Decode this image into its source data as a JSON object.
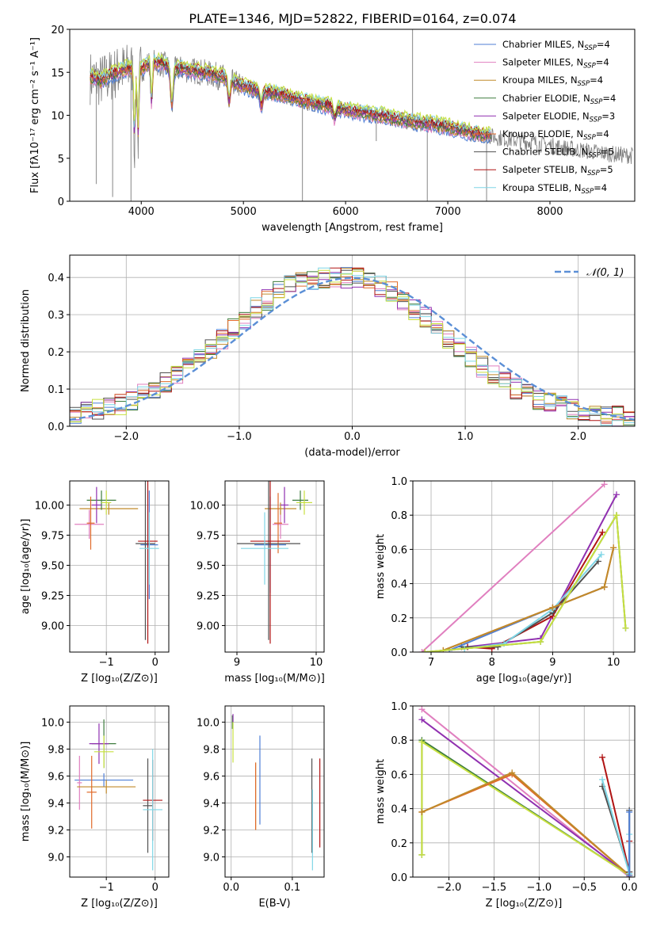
{
  "figure": {
    "title": "PLATE=1346, MJD=52822, FIBERID=0164, z=0.074"
  },
  "colors": {
    "Chabrier MILES": "#4f7fd6",
    "Salpeter MILES": "#e07fbf",
    "Kroupa MILES": "#c08a2a",
    "Chabrier ELODIE": "#3e7d3e",
    "Salpeter ELODIE": "#9030b0",
    "Kroupa ELODIE": "#e06a2a",
    "Chabrier STELIB": "#505050",
    "Salpeter STELIB": "#b01414",
    "Kroupa STELIB": "#7fd6e6",
    "extra": "#c8e040",
    "data": "#7f7f7f",
    "normal": "#5b8fd6"
  },
  "chart_data": [
    {
      "id": "spectrum",
      "type": "line",
      "xlabel": "wavelength [Angstrom, rest frame]",
      "ylabel": "Flux [fλ10⁻¹⁷ erg cm⁻² s⁻¹ A⁻¹]",
      "xlim": [
        3300,
        8830
      ],
      "ylim": [
        0,
        20
      ],
      "xticks": [
        4000,
        5000,
        6000,
        7000,
        8000
      ],
      "yticks": [
        0,
        5,
        10,
        15,
        20
      ],
      "grid": false,
      "legend": "upper right",
      "legend_entries": [
        {
          "name": "Chabrier MILES",
          "nssp": "4"
        },
        {
          "name": "Salpeter MILES",
          "nssp": "4"
        },
        {
          "name": "Kroupa MILES",
          "nssp": "4"
        },
        {
          "name": "Chabrier ELODIE",
          "nssp": "4"
        },
        {
          "name": "Salpeter ELODIE",
          "nssp": "3"
        },
        {
          "name": "Kroupa ELODIE",
          "nssp": "4"
        },
        {
          "name": "Chabrier STELIB",
          "nssp": "5"
        },
        {
          "name": "Salpeter STELIB",
          "nssp": "5"
        },
        {
          "name": "Kroupa STELIB",
          "nssp": "4"
        }
      ],
      "continuum": [
        [
          3500,
          14.4
        ],
        [
          3600,
          14.0
        ],
        [
          3700,
          14.6
        ],
        [
          3800,
          15.2
        ],
        [
          3900,
          15.5
        ],
        [
          4000,
          15.4
        ],
        [
          4100,
          16.2
        ],
        [
          4200,
          16.0
        ],
        [
          4300,
          15.3
        ],
        [
          4400,
          15.4
        ],
        [
          4600,
          15.0
        ],
        [
          4800,
          14.4
        ],
        [
          5000,
          13.3
        ],
        [
          5200,
          12.7
        ],
        [
          5400,
          12.3
        ],
        [
          5600,
          11.6
        ],
        [
          5800,
          11.1
        ],
        [
          6000,
          10.6
        ],
        [
          6200,
          10.2
        ],
        [
          6400,
          9.8
        ],
        [
          6600,
          9.3
        ],
        [
          6800,
          9.0
        ],
        [
          7000,
          8.6
        ],
        [
          7200,
          8.0
        ],
        [
          7400,
          7.6
        ],
        [
          7600,
          7.2
        ],
        [
          7800,
          6.9
        ],
        [
          8000,
          6.5
        ],
        [
          8200,
          6.1
        ],
        [
          8400,
          5.8
        ],
        [
          8600,
          5.5
        ],
        [
          8800,
          5.3
        ]
      ],
      "absorption_lines": [
        [
          3934,
          6.5
        ],
        [
          3969,
          7.2
        ],
        [
          4101,
          11.0
        ],
        [
          4300,
          10.5
        ],
        [
          4861,
          11.3
        ],
        [
          5175,
          10.8
        ],
        [
          5893,
          9.5
        ]
      ],
      "data_spikes": [
        [
          3560,
          2.0
        ],
        [
          3720,
          0.5
        ],
        [
          3900,
          0
        ],
        [
          5577,
          0
        ],
        [
          6300,
          7.0
        ],
        [
          6800,
          0
        ],
        [
          7380,
          0
        ],
        [
          6655,
          20
        ]
      ]
    },
    {
      "id": "residuals",
      "type": "line",
      "xlabel": "(data-model)/error",
      "ylabel": "Normed distribution",
      "xlim": [
        -2.5,
        2.5
      ],
      "ylim": [
        0,
        0.46
      ],
      "xticks": [
        -2,
        -1,
        0,
        1,
        2
      ],
      "yticks": [
        0.0,
        0.1,
        0.2,
        0.3,
        0.4
      ],
      "grid": true,
      "legend": "upper right",
      "legend_entries": [
        {
          "name": "𝒩(0, 1)"
        }
      ],
      "bin_centers": [
        -2.45,
        -2.35,
        -2.25,
        -2.15,
        -2.05,
        -1.95,
        -1.85,
        -1.75,
        -1.65,
        -1.55,
        -1.45,
        -1.35,
        -1.25,
        -1.15,
        -1.05,
        -0.95,
        -0.85,
        -0.75,
        -0.65,
        -0.55,
        -0.45,
        -0.35,
        -0.25,
        -0.15,
        -0.05,
        0.05,
        0.15,
        0.25,
        0.35,
        0.45,
        0.55,
        0.65,
        0.75,
        0.85,
        0.95,
        1.05,
        1.15,
        1.25,
        1.35,
        1.45,
        1.55,
        1.65,
        1.75,
        1.85,
        1.95,
        2.05,
        2.15,
        2.25,
        2.35,
        2.45
      ],
      "hist_base": [
        0.035,
        0.038,
        0.045,
        0.052,
        0.06,
        0.07,
        0.084,
        0.1,
        0.118,
        0.138,
        0.16,
        0.185,
        0.21,
        0.236,
        0.263,
        0.29,
        0.316,
        0.34,
        0.36,
        0.376,
        0.388,
        0.396,
        0.4,
        0.402,
        0.4,
        0.396,
        0.388,
        0.376,
        0.36,
        0.34,
        0.316,
        0.29,
        0.263,
        0.236,
        0.21,
        0.185,
        0.16,
        0.138,
        0.118,
        0.1,
        0.084,
        0.07,
        0.06,
        0.052,
        0.045,
        0.038,
        0.035,
        0.03,
        0.026,
        0.022
      ]
    },
    {
      "id": "age_vs_Z",
      "type": "scatter",
      "xlabel": "Z [log₁₀(Z/Z⊙)]",
      "ylabel": "age  [log₁₀(age/yr)]",
      "xlim": [
        -1.75,
        0.28
      ],
      "ylim": [
        8.78,
        10.2
      ],
      "xticks": [
        -1,
        0
      ],
      "yticks": [
        9.0,
        9.25,
        9.5,
        9.75,
        10.0
      ],
      "grid": true,
      "points": [
        {
          "c": "Chabrier MILES",
          "x": -0.12,
          "y": 9.67,
          "xerr": 0.18,
          "yerr": 0.45
        },
        {
          "c": "Salpeter MILES",
          "x": -1.35,
          "y": 9.84,
          "xerr": 0.3,
          "yerr": 0.12
        },
        {
          "c": "Kroupa MILES",
          "x": -0.95,
          "y": 9.97,
          "xerr": 0.6,
          "yerr": 0.05
        },
        {
          "c": "Chabrier ELODIE",
          "x": -1.1,
          "y": 10.04,
          "xerr": 0.3,
          "yerr": 0.08
        },
        {
          "c": "Salpeter ELODIE",
          "x": -1.2,
          "y": 10.0,
          "xerr": 0.1,
          "yerr": 0.15
        },
        {
          "c": "Kroupa ELODIE",
          "x": -1.32,
          "y": 9.85,
          "xerr": 0.08,
          "yerr": 0.22
        },
        {
          "c": "Chabrier STELIB",
          "x": -0.2,
          "y": 9.68,
          "xerr": 0.2,
          "yerr": 0.8
        },
        {
          "c": "Salpeter STELIB",
          "x": -0.15,
          "y": 9.7,
          "xerr": 0.2,
          "yerr": 0.85
        },
        {
          "c": "Kroupa STELIB",
          "x": -0.12,
          "y": 9.64,
          "xerr": 0.2,
          "yerr": 0.3
        },
        {
          "c": "extra",
          "x": -1.0,
          "y": 10.02,
          "xerr": 0.1,
          "yerr": 0.1
        }
      ]
    },
    {
      "id": "age_vs_mass",
      "type": "scatter",
      "xlabel": "mass [log₁₀(M/M⊙)]",
      "ylabel": "",
      "xlim": [
        8.85,
        10.1
      ],
      "ylim": [
        8.78,
        10.2
      ],
      "xticks": [
        9,
        10
      ],
      "yticks": [
        9.0,
        9.25,
        9.5,
        9.75,
        10.0
      ],
      "grid": true,
      "points": [
        {
          "c": "Chabrier MILES",
          "x": 9.42,
          "y": 9.67,
          "xerr": 0.2,
          "yerr": 0.4
        },
        {
          "c": "Salpeter MILES",
          "x": 9.55,
          "y": 9.84,
          "xerr": 0.1,
          "yerr": 0.12
        },
        {
          "c": "Kroupa MILES",
          "x": 9.55,
          "y": 9.97,
          "xerr": 0.2,
          "yerr": 0.05
        },
        {
          "c": "Chabrier ELODIE",
          "x": 9.8,
          "y": 10.04,
          "xerr": 0.1,
          "yerr": 0.08
        },
        {
          "c": "Salpeter ELODIE",
          "x": 9.6,
          "y": 10.0,
          "xerr": 0.05,
          "yerr": 0.15
        },
        {
          "c": "Kroupa ELODIE",
          "x": 9.52,
          "y": 9.85,
          "xerr": 0.05,
          "yerr": 0.25
        },
        {
          "c": "Chabrier STELIB",
          "x": 9.4,
          "y": 9.68,
          "xerr": 0.4,
          "yerr": 0.8
        },
        {
          "c": "Salpeter STELIB",
          "x": 9.42,
          "y": 9.7,
          "xerr": 0.25,
          "yerr": 0.85
        },
        {
          "c": "Kroupa STELIB",
          "x": 9.35,
          "y": 9.64,
          "xerr": 0.3,
          "yerr": 0.3
        },
        {
          "c": "extra",
          "x": 9.85,
          "y": 10.02,
          "xerr": 0.1,
          "yerr": 0.1
        }
      ]
    },
    {
      "id": "mass_weight_vs_age",
      "type": "line",
      "xlabel": "age  [log₁₀(age/yr)]",
      "ylabel": "mass weight",
      "xlim": [
        6.7,
        10.35
      ],
      "ylim": [
        0,
        1
      ],
      "xticks": [
        7,
        8,
        9,
        10
      ],
      "yticks": [
        0.0,
        0.2,
        0.4,
        0.6,
        0.8,
        1.0
      ],
      "grid": true,
      "series": [
        {
          "c": "Salpeter MILES",
          "x": [
            6.85,
            9.85
          ],
          "y": [
            0.0,
            0.98
          ]
        },
        {
          "c": "Salpeter ELODIE",
          "x": [
            7.6,
            8.8,
            10.05
          ],
          "y": [
            0.03,
            0.08,
            0.92
          ]
        },
        {
          "c": "Salpeter STELIB",
          "x": [
            7.6,
            8.0,
            9.0,
            9.82
          ],
          "y": [
            0.03,
            0.02,
            0.21,
            0.7
          ]
        },
        {
          "c": "Chabrier STELIB",
          "x": [
            7.5,
            8.1,
            9.0,
            9.75
          ],
          "y": [
            0.03,
            0.03,
            0.23,
            0.53
          ]
        },
        {
          "c": "Kroupa STELIB",
          "x": [
            7.55,
            8.2,
            9.0,
            9.8
          ],
          "y": [
            0.02,
            0.05,
            0.25,
            0.57
          ]
        },
        {
          "c": "Chabrier MILES",
          "x": [
            7.3,
            9.0,
            9.85
          ],
          "y": [
            0.01,
            0.26,
            0.38
          ]
        },
        {
          "c": "Kroupa ELODIE",
          "x": [
            7.2,
            9.0,
            9.85,
            10.0
          ],
          "y": [
            0.01,
            0.26,
            0.38,
            0.61
          ]
        },
        {
          "c": "Kroupa MILES",
          "x": [
            7.2,
            9.0,
            9.85,
            10.0
          ],
          "y": [
            0.01,
            0.26,
            0.38,
            0.61
          ]
        },
        {
          "c": "Chabrier ELODIE",
          "x": [
            6.9,
            8.8,
            10.05,
            10.2
          ],
          "y": [
            0.0,
            0.06,
            0.8,
            0.14
          ]
        },
        {
          "c": "extra",
          "x": [
            6.9,
            8.8,
            10.05,
            10.2
          ],
          "y": [
            0.0,
            0.06,
            0.8,
            0.14
          ]
        }
      ]
    },
    {
      "id": "mass_vs_Z",
      "type": "scatter",
      "xlabel": "Z [log₁₀(Z/Z⊙)]",
      "ylabel": "mass [log₁₀(M/M⊙)]",
      "xlim": [
        -1.75,
        0.28
      ],
      "ylim": [
        8.85,
        10.12
      ],
      "xticks": [
        -1,
        0
      ],
      "yticks": [
        9.0,
        9.2,
        9.4,
        9.6,
        9.8,
        10.0
      ],
      "grid": true,
      "points": [
        {
          "c": "Chabrier MILES",
          "x": -1.05,
          "y": 9.57,
          "xerr": 0.6,
          "yerr": 0.05
        },
        {
          "c": "Salpeter MILES",
          "x": -1.55,
          "y": 9.55,
          "xerr": 0.05,
          "yerr": 0.2
        },
        {
          "c": "Kroupa MILES",
          "x": -1.0,
          "y": 9.52,
          "xerr": 0.6,
          "yerr": 0.05
        },
        {
          "c": "Chabrier ELODIE",
          "x": -1.05,
          "y": 9.84,
          "xerr": 0.25,
          "yerr": 0.18
        },
        {
          "c": "Salpeter ELODIE",
          "x": -1.15,
          "y": 9.84,
          "xerr": 0.2,
          "yerr": 0.15
        },
        {
          "c": "Kroupa ELODIE",
          "x": -1.3,
          "y": 9.48,
          "xerr": 0.1,
          "yerr": 0.27
        },
        {
          "c": "Chabrier STELIB",
          "x": -0.15,
          "y": 9.38,
          "xerr": 0.1,
          "yerr": 0.35
        },
        {
          "c": "Salpeter STELIB",
          "x": -0.05,
          "y": 9.42,
          "xerr": 0.2,
          "yerr": 0.3
        },
        {
          "c": "Kroupa STELIB",
          "x": -0.05,
          "y": 9.35,
          "xerr": 0.2,
          "yerr": 0.45
        },
        {
          "c": "extra",
          "x": -1.05,
          "y": 9.78,
          "xerr": 0.2,
          "yerr": 0.12
        }
      ]
    },
    {
      "id": "mass_vs_ebv",
      "type": "scatter",
      "xlabel": "E(B-V)",
      "ylabel": "",
      "xlim": [
        -0.01,
        0.152
      ],
      "ylim": [
        8.85,
        10.12
      ],
      "xticks": [
        0.0,
        0.1
      ],
      "yticks": [
        9.0,
        9.2,
        9.4,
        9.6,
        9.8,
        10.0
      ],
      "grid": true,
      "points": [
        {
          "c": "Chabrier MILES",
          "x": 0.047,
          "y": 9.57,
          "yerr": 0.33
        },
        {
          "c": "Kroupa MILES",
          "x": 0.04,
          "y": 9.45,
          "yerr": 0.25
        },
        {
          "c": "Kroupa ELODIE",
          "x": 0.04,
          "y": 9.45,
          "yerr": 0.25
        },
        {
          "c": "Chabrier STELIB",
          "x": 0.132,
          "y": 9.38,
          "yerr": 0.35
        },
        {
          "c": "Salpeter STELIB",
          "x": 0.145,
          "y": 9.4,
          "yerr": 0.33
        },
        {
          "c": "Kroupa STELIB",
          "x": 0.133,
          "y": 9.2,
          "yerr": 0.3
        },
        {
          "c": "Chabrier ELODIE",
          "x": 0.002,
          "y": 10.0,
          "yerr": 0.05
        },
        {
          "c": "Salpeter ELODIE",
          "x": 0.003,
          "y": 10.03,
          "yerr": 0.03
        },
        {
          "c": "extra",
          "x": 0.003,
          "y": 9.85,
          "yerr": 0.15
        }
      ]
    },
    {
      "id": "mass_weight_vs_Z",
      "type": "line",
      "xlabel": "Z [log₁₀(Z/Z⊙)]",
      "ylabel": "mass weight",
      "xlim": [
        -2.4,
        0.06
      ],
      "ylim": [
        0,
        1
      ],
      "xticks": [
        -2.0,
        -1.5,
        -1.0,
        -0.5,
        0.0
      ],
      "yticks": [
        0.0,
        0.2,
        0.4,
        0.6,
        0.8,
        1.0
      ],
      "grid": true,
      "series": [
        {
          "c": "Salpeter MILES",
          "x": [
            -2.3,
            0.0
          ],
          "y": [
            0.98,
            0.0
          ]
        },
        {
          "c": "Salpeter ELODIE",
          "x": [
            -2.3,
            0.0
          ],
          "y": [
            0.92,
            0.01
          ]
        },
        {
          "c": "Chabrier ELODIE",
          "x": [
            -2.3,
            -2.3,
            0.0
          ],
          "y": [
            0.13,
            0.8,
            0.01
          ]
        },
        {
          "c": "extra",
          "x": [
            -2.3,
            -2.3,
            0.0
          ],
          "y": [
            0.13,
            0.79,
            0.01
          ]
        },
        {
          "c": "Kroupa ELODIE",
          "x": [
            -2.3,
            -1.3,
            0.0
          ],
          "y": [
            0.38,
            0.6,
            0.01
          ]
        },
        {
          "c": "Kroupa MILES",
          "x": [
            -2.3,
            -1.3,
            0.0
          ],
          "y": [
            0.38,
            0.61,
            0.01
          ]
        },
        {
          "c": "Salpeter STELIB",
          "x": [
            -0.3,
            0.0,
            0.0,
            0.0
          ],
          "y": [
            0.7,
            0.03,
            0.21,
            0.0
          ]
        },
        {
          "c": "Chabrier STELIB",
          "x": [
            -0.3,
            0.0,
            0.0,
            0.0
          ],
          "y": [
            0.53,
            0.03,
            0.39,
            0.0
          ]
        },
        {
          "c": "Kroupa STELIB",
          "x": [
            -0.3,
            0.0,
            0.0
          ],
          "y": [
            0.57,
            0.02,
            0.25
          ]
        },
        {
          "c": "Chabrier MILES",
          "x": [
            0.0,
            0.0
          ],
          "y": [
            0.01,
            0.38
          ]
        }
      ]
    }
  ]
}
